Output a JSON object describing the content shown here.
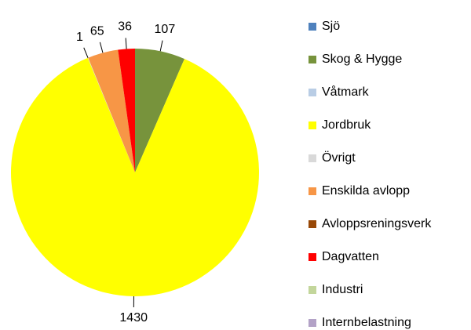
{
  "chart_data": {
    "type": "pie",
    "categories": [
      "Sjö",
      "Skog & Hygge",
      "Våtmark",
      "Jordbruk",
      "Övrigt",
      "Enskilda avlopp",
      "Avloppsreningsverk",
      "Dagvatten",
      "Industri",
      "Internbelastning"
    ],
    "values": [
      0,
      107,
      0,
      1430,
      1,
      65,
      0,
      36,
      0,
      0
    ],
    "colors": [
      "#4f81bd",
      "#77933c",
      "#b9cde5",
      "#ffff00",
      "#d9d9d9",
      "#f79646",
      "#984807",
      "#ff0000",
      "#c3d69b",
      "#b3a2c7"
    ],
    "legend": "right"
  }
}
